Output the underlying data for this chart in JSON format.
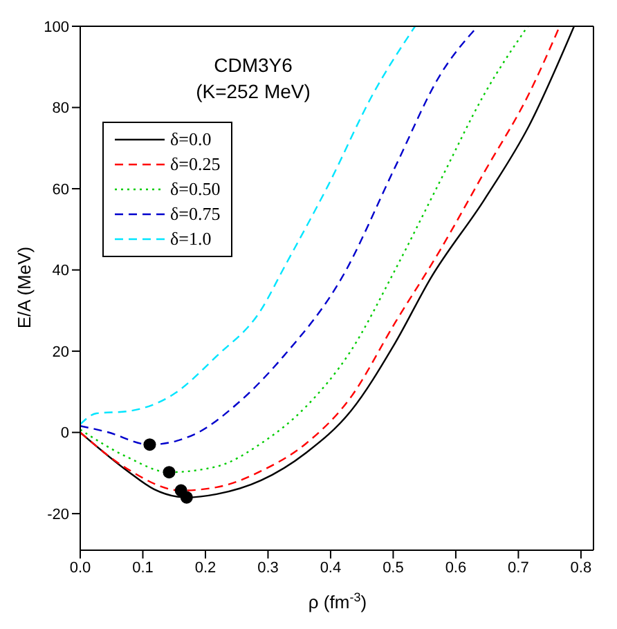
{
  "chart_data": {
    "type": "line",
    "title": "CDM3Y6",
    "subtitle": "(K=252 MeV)",
    "xlabel": "ρ (fm$^{-3}$)",
    "ylabel": "E/A (MeV)",
    "xlim": [
      0,
      0.82
    ],
    "xticks": [
      {
        "value": 0,
        "label": "0.0"
      },
      0.1,
      0.2,
      0.3,
      0.4,
      0.5,
      0.6,
      0.7,
      0.8
    ],
    "ylim": [
      -29,
      100
    ],
    "yticks": [
      -20,
      0,
      20,
      40,
      60,
      80,
      100
    ],
    "legend": "top left",
    "marker": "none",
    "series": [
      {
        "name": "δ=0.0",
        "color": "#000000",
        "line_style": "solid",
        "x": [
          0,
          0.0755,
          0.118,
          0.17,
          0.218,
          0.289,
          0.361,
          0.432,
          0.503,
          0.56,
          0.646,
          0.717,
          0.789
        ],
        "values": [
          0,
          -9.5,
          -14,
          -16,
          -15.2,
          -11.8,
          -5,
          5.2,
          22,
          38,
          57.4,
          75.5,
          100
        ]
      },
      {
        "name": "δ=0.25",
        "color": "#ff0000",
        "line_style": "dashed",
        "x": [
          0,
          0.0755,
          0.161,
          0.218,
          0.289,
          0.361,
          0.432,
          0.503,
          0.575,
          0.646,
          0.717,
          0.766
        ],
        "values": [
          0,
          -9,
          -14.3,
          -13.5,
          -9.5,
          -2.7,
          8.6,
          27,
          44.9,
          64.2,
          83.4,
          100
        ]
      },
      {
        "name": "δ=0.50",
        "color": "#00cc00",
        "line_style": "dotted",
        "x": [
          0,
          0.0755,
          0.142,
          0.218,
          0.289,
          0.361,
          0.432,
          0.503,
          0.575,
          0.646,
          0.715
        ],
        "values": [
          0.7,
          -6.1,
          -9.8,
          -8.4,
          -2.7,
          6.4,
          20,
          40,
          61.9,
          83.4,
          100
        ]
      },
      {
        "name": "δ=0.75",
        "color": "#0000cc",
        "line_style": "dashed",
        "x": [
          0,
          0.043,
          0.111,
          0.182,
          0.254,
          0.325,
          0.418,
          0.503,
          0.575,
          0.635
        ],
        "values": [
          1.6,
          0.1,
          -3,
          -0.5,
          7.5,
          18.8,
          38.1,
          65.3,
          88,
          100
        ]
      },
      {
        "name": "δ=1.0",
        "color": "#00e5ff",
        "line_style": "dashed",
        "x": [
          0,
          0.026,
          0.0755,
          0.147,
          0.218,
          0.289,
          0.325,
          0.396,
          0.468,
          0.535
        ],
        "values": [
          2,
          4.7,
          5.2,
          9.2,
          18.8,
          30.2,
          40.4,
          60.8,
          83.4,
          100
        ]
      },
      {
        "type": "scatter",
        "color": "#000000",
        "marker": "circle",
        "x": [
          0.17,
          0.161,
          0.142,
          0.111
        ],
        "values": [
          -16,
          -14.3,
          -9.8,
          -3
        ]
      }
    ]
  }
}
